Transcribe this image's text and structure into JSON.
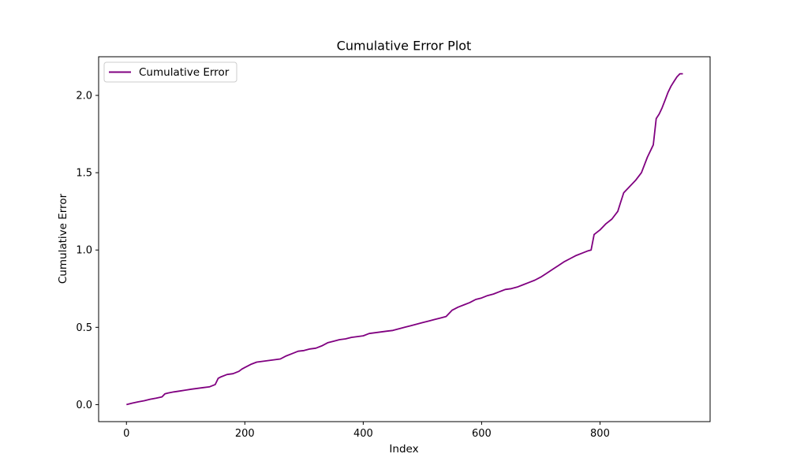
{
  "chart_data": {
    "type": "line",
    "title": "Cumulative Error Plot",
    "xlabel": "Index",
    "ylabel": "Cumulative Error",
    "xlim": [
      -47,
      986
    ],
    "ylim": [
      -0.11,
      2.25
    ],
    "xticks": [
      0,
      200,
      400,
      600,
      800
    ],
    "xtick_labels": [
      "0",
      "200",
      "400",
      "600",
      "800"
    ],
    "yticks": [
      0.0,
      0.5,
      1.0,
      1.5,
      2.0
    ],
    "ytick_labels": [
      "0.0",
      "0.5",
      "1.0",
      "1.5",
      "2.0"
    ],
    "grid": false,
    "legend_position": "upper left",
    "series": [
      {
        "name": "Cumulative Error",
        "color": "#800080",
        "x": [
          0,
          10,
          20,
          30,
          40,
          50,
          60,
          65,
          70,
          80,
          90,
          100,
          110,
          120,
          130,
          140,
          150,
          155,
          160,
          170,
          180,
          190,
          195,
          200,
          210,
          220,
          230,
          240,
          250,
          260,
          270,
          280,
          290,
          300,
          310,
          320,
          330,
          340,
          350,
          360,
          370,
          380,
          390,
          400,
          410,
          420,
          430,
          440,
          450,
          460,
          470,
          480,
          490,
          500,
          510,
          520,
          530,
          540,
          550,
          555,
          560,
          570,
          580,
          590,
          600,
          610,
          620,
          630,
          640,
          650,
          660,
          670,
          680,
          690,
          700,
          710,
          720,
          730,
          740,
          750,
          760,
          770,
          780,
          785,
          790,
          800,
          810,
          820,
          830,
          835,
          840,
          850,
          860,
          870,
          880,
          890,
          895,
          900,
          905,
          910,
          915,
          920,
          925,
          930,
          935,
          940
        ],
        "y": [
          0.0,
          0.01,
          0.018,
          0.025,
          0.035,
          0.042,
          0.05,
          0.07,
          0.075,
          0.082,
          0.088,
          0.094,
          0.1,
          0.105,
          0.11,
          0.115,
          0.13,
          0.17,
          0.18,
          0.195,
          0.2,
          0.215,
          0.23,
          0.24,
          0.26,
          0.275,
          0.28,
          0.285,
          0.29,
          0.295,
          0.315,
          0.33,
          0.345,
          0.35,
          0.36,
          0.365,
          0.38,
          0.4,
          0.41,
          0.42,
          0.425,
          0.435,
          0.44,
          0.445,
          0.46,
          0.465,
          0.47,
          0.475,
          0.48,
          0.49,
          0.5,
          0.51,
          0.52,
          0.53,
          0.54,
          0.55,
          0.56,
          0.57,
          0.61,
          0.62,
          0.63,
          0.645,
          0.66,
          0.68,
          0.69,
          0.705,
          0.715,
          0.73,
          0.745,
          0.75,
          0.76,
          0.775,
          0.79,
          0.805,
          0.825,
          0.85,
          0.875,
          0.9,
          0.925,
          0.945,
          0.965,
          0.98,
          0.995,
          1.0,
          1.1,
          1.13,
          1.17,
          1.2,
          1.25,
          1.31,
          1.37,
          1.41,
          1.45,
          1.5,
          1.6,
          1.68,
          1.85,
          1.88,
          1.92,
          1.97,
          2.02,
          2.06,
          2.09,
          2.12,
          2.14,
          2.14
        ]
      }
    ]
  }
}
